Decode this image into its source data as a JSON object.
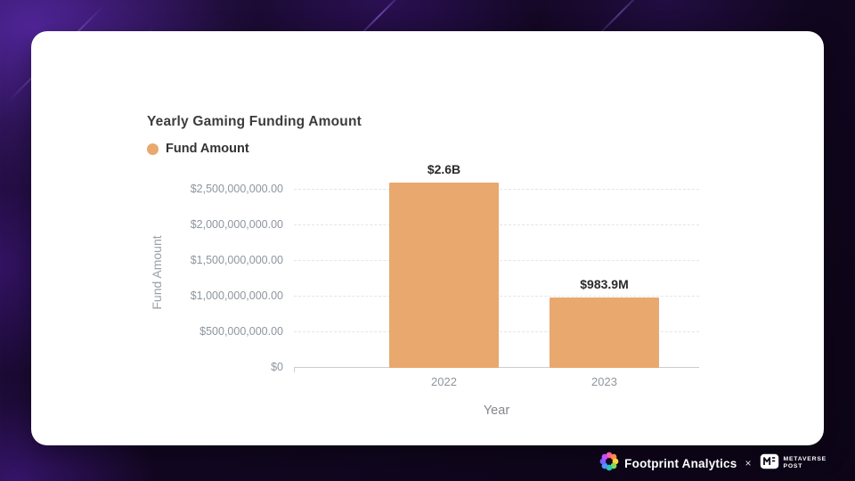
{
  "chart_data": {
    "type": "bar",
    "title": "Yearly Gaming Funding Amount",
    "legend": [
      "Fund Amount"
    ],
    "legend_position": "top-left",
    "categories": [
      "2022",
      "2023"
    ],
    "values": [
      2600000000,
      983900000
    ],
    "value_labels": [
      "$2.6B",
      "$983.9M"
    ],
    "xlabel": "Year",
    "ylabel": "Fund Amount",
    "ylim": [
      0,
      2500000000
    ],
    "ytick_labels": [
      "$2,500,000,000.00",
      "$2,000,000,000.00",
      "$1,500,000,000.00",
      "$1,000,000,000.00",
      "$500,000,000.00",
      "$0"
    ],
    "grid": true,
    "bar_color": "#e8a86e"
  },
  "footer": {
    "brand": "Footprint Analytics",
    "separator": "×",
    "partner": {
      "line1": "METAVERSE",
      "line2": "POST"
    }
  },
  "colors": {
    "bar": "#e8a86e",
    "card_bg": "#ffffff",
    "page_bg": "#120722",
    "accent_purple": "#6d28d9",
    "grid_line": "#e3e5e8",
    "tick_text": "#8f959e"
  }
}
